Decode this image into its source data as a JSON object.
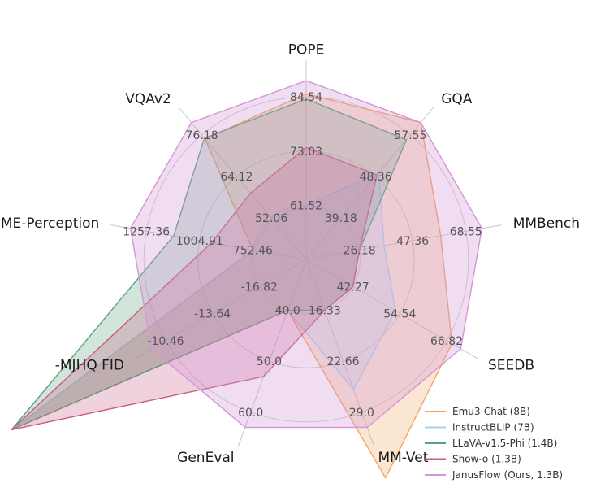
{
  "chart_data": {
    "type": "radar",
    "axes": [
      "POPE",
      "GQA",
      "MMBench",
      "SEEDB",
      "MM-Vet",
      "GenEval",
      "-MJHQ FID",
      "MME-Perception",
      "VQAv2"
    ],
    "ticks": [
      [
        "73.03",
        "61.52",
        "84.54"
      ],
      [
        "48.36",
        "39.18",
        "57.55"
      ],
      [
        "47.36",
        "26.18",
        "68.55"
      ],
      [
        "54.54",
        "42.27",
        "66.82"
      ],
      [
        "22.66",
        "16.33",
        "29.0"
      ],
      [
        "50.0",
        "40.0",
        "60.0"
      ],
      [
        "-13.64",
        "-16.82",
        "-10.46"
      ],
      [
        "1004.91",
        "752.46",
        "1257.36"
      ],
      [
        "64.12",
        "52.06",
        "76.18"
      ]
    ],
    "series": [
      {
        "name": "Emu3-Chat (8B)",
        "color": "#f0a661",
        "values": [
          85.2,
          60.3,
          58.5,
          68.2,
          37.2,
          0,
          0,
          0,
          75.1
        ]
      },
      {
        "name": "InstructBLIP (7B)",
        "color": "#a7d2ee",
        "values": [
          0,
          49.2,
          36.0,
          53.4,
          26.2,
          0,
          0,
          0,
          0
        ]
      },
      {
        "name": "LLaVA-v1.5-Phi (1.4B)",
        "color": "#5aa37a",
        "values": [
          84.1,
          56.5,
          0,
          0,
          0,
          0,
          0,
          1128.0,
          75.3
        ]
      },
      {
        "name": "Show-o (1.3B)",
        "color": "#c55e85",
        "values": [
          73.8,
          48.7,
          0,
          0,
          0,
          53.0,
          0,
          948.4,
          59.3
        ]
      },
      {
        "name": "JanusFlow (Ours, 1.3B)",
        "color": "#d396d6",
        "values": [
          88.0,
          60.3,
          74.9,
          70.5,
          30.9,
          63.0,
          -9.51,
          1333.1,
          79.8
        ]
      }
    ],
    "legend_position": "bottom-right",
    "grid": true
  }
}
